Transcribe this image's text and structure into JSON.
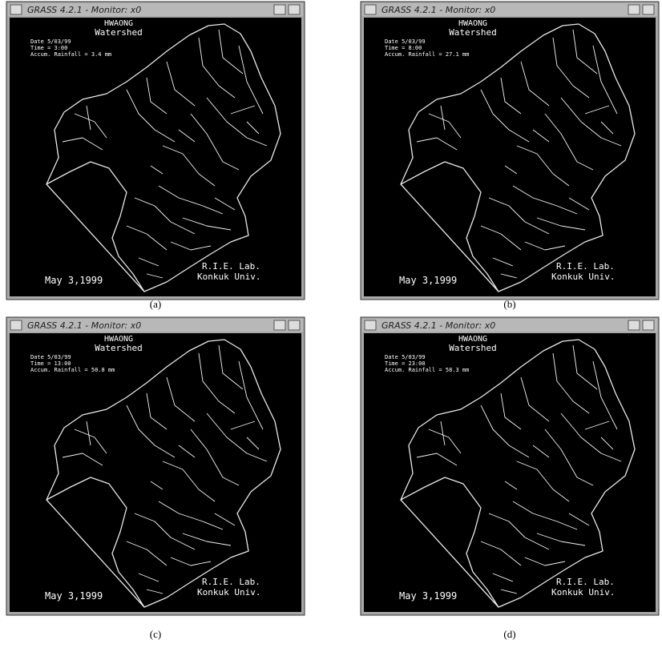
{
  "panels": [
    {
      "title": "GRASS 4.2.1 - Monitor: x0",
      "name": "HWAONG",
      "subtitle": "Watershed",
      "date": "Date 5/03/99",
      "time": "Time = 3:00",
      "rainfall": "Accum. Rainfall = 3.4 mm",
      "lab": "R.I.E. Lab.",
      "univ": "Konkuk Univ.",
      "day": "May 3,1999",
      "caption": "(a)"
    },
    {
      "title": "GRASS 4.2.1 - Monitor: x0",
      "name": "HWAONG",
      "subtitle": "Watershed",
      "date": "Date 5/03/99",
      "time": "Time = 8:00",
      "rainfall": "Accum. Rainfall = 27.1 mm",
      "lab": "R.I.E. Lab.",
      "univ": "Konkuk Univ.",
      "day": "May 3,1999",
      "caption": "(b)"
    },
    {
      "title": "GRASS 4.2.1 - Monitor: x0",
      "name": "HWAONG",
      "subtitle": "Watershed",
      "date": "Date 5/03/99",
      "time": "Time = 13:00",
      "rainfall": "Accum. Rainfall = 50.8 mm",
      "lab": "R.I.E. Lab.",
      "univ": "Konkuk Univ.",
      "day": "May 3,1999",
      "caption": "(c)"
    },
    {
      "title": "GRASS 4.2.1 - Monitor: x0",
      "name": "HWAONG",
      "subtitle": "Watershed",
      "date": "Date 5/03/99",
      "time": "Time = 23:00",
      "rainfall": "Accum. Rainfall = 58.3 mm",
      "lab": "R.I.E. Lab.",
      "univ": "Konkuk Univ.",
      "day": "May 3,1999",
      "caption": "(d)"
    }
  ]
}
